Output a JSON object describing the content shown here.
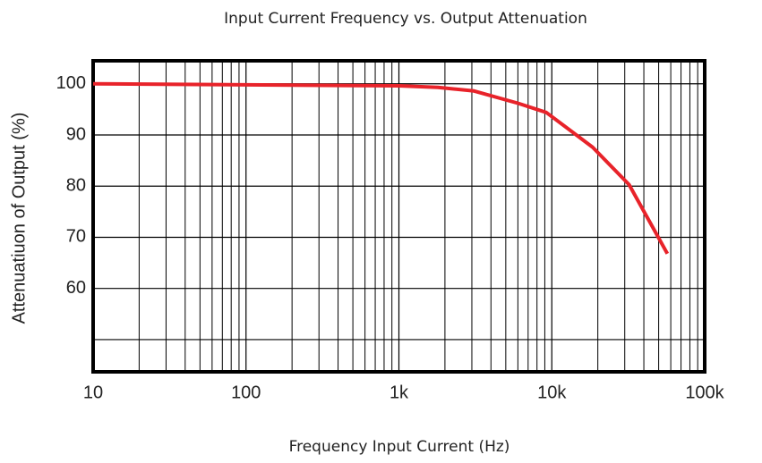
{
  "chart_data": {
    "type": "line",
    "title": "Input Current Frequency vs. Output Attenuation",
    "x_label": "Frequency Input Current (Hz)",
    "y_label": "Attenuatiuon of Output (%)",
    "log_x": true,
    "grid": true,
    "series": [
      {
        "name": "Attenuation",
        "color": "#e8232a",
        "x": [
          10,
          100,
          1000,
          1800,
          3100,
          6000,
          9200,
          18500,
          32000,
          57000
        ],
        "values": [
          100,
          99.8,
          99.6,
          99.3,
          98.6,
          96.2,
          94.4,
          87.6,
          80.3,
          66.8
        ]
      }
    ],
    "xlim": [
      10,
      100000
    ],
    "xticks": [
      10,
      100,
      {
        "value": 1000,
        "label": "1k"
      },
      {
        "value": 10000,
        "label": "10k"
      },
      {
        "value": 100000,
        "label": "100k"
      }
    ],
    "ylim": [
      43.7,
      104.5
    ],
    "yticks": [
      {
        "value": 50,
        "label": null
      },
      60,
      70,
      80,
      90,
      100
    ]
  }
}
